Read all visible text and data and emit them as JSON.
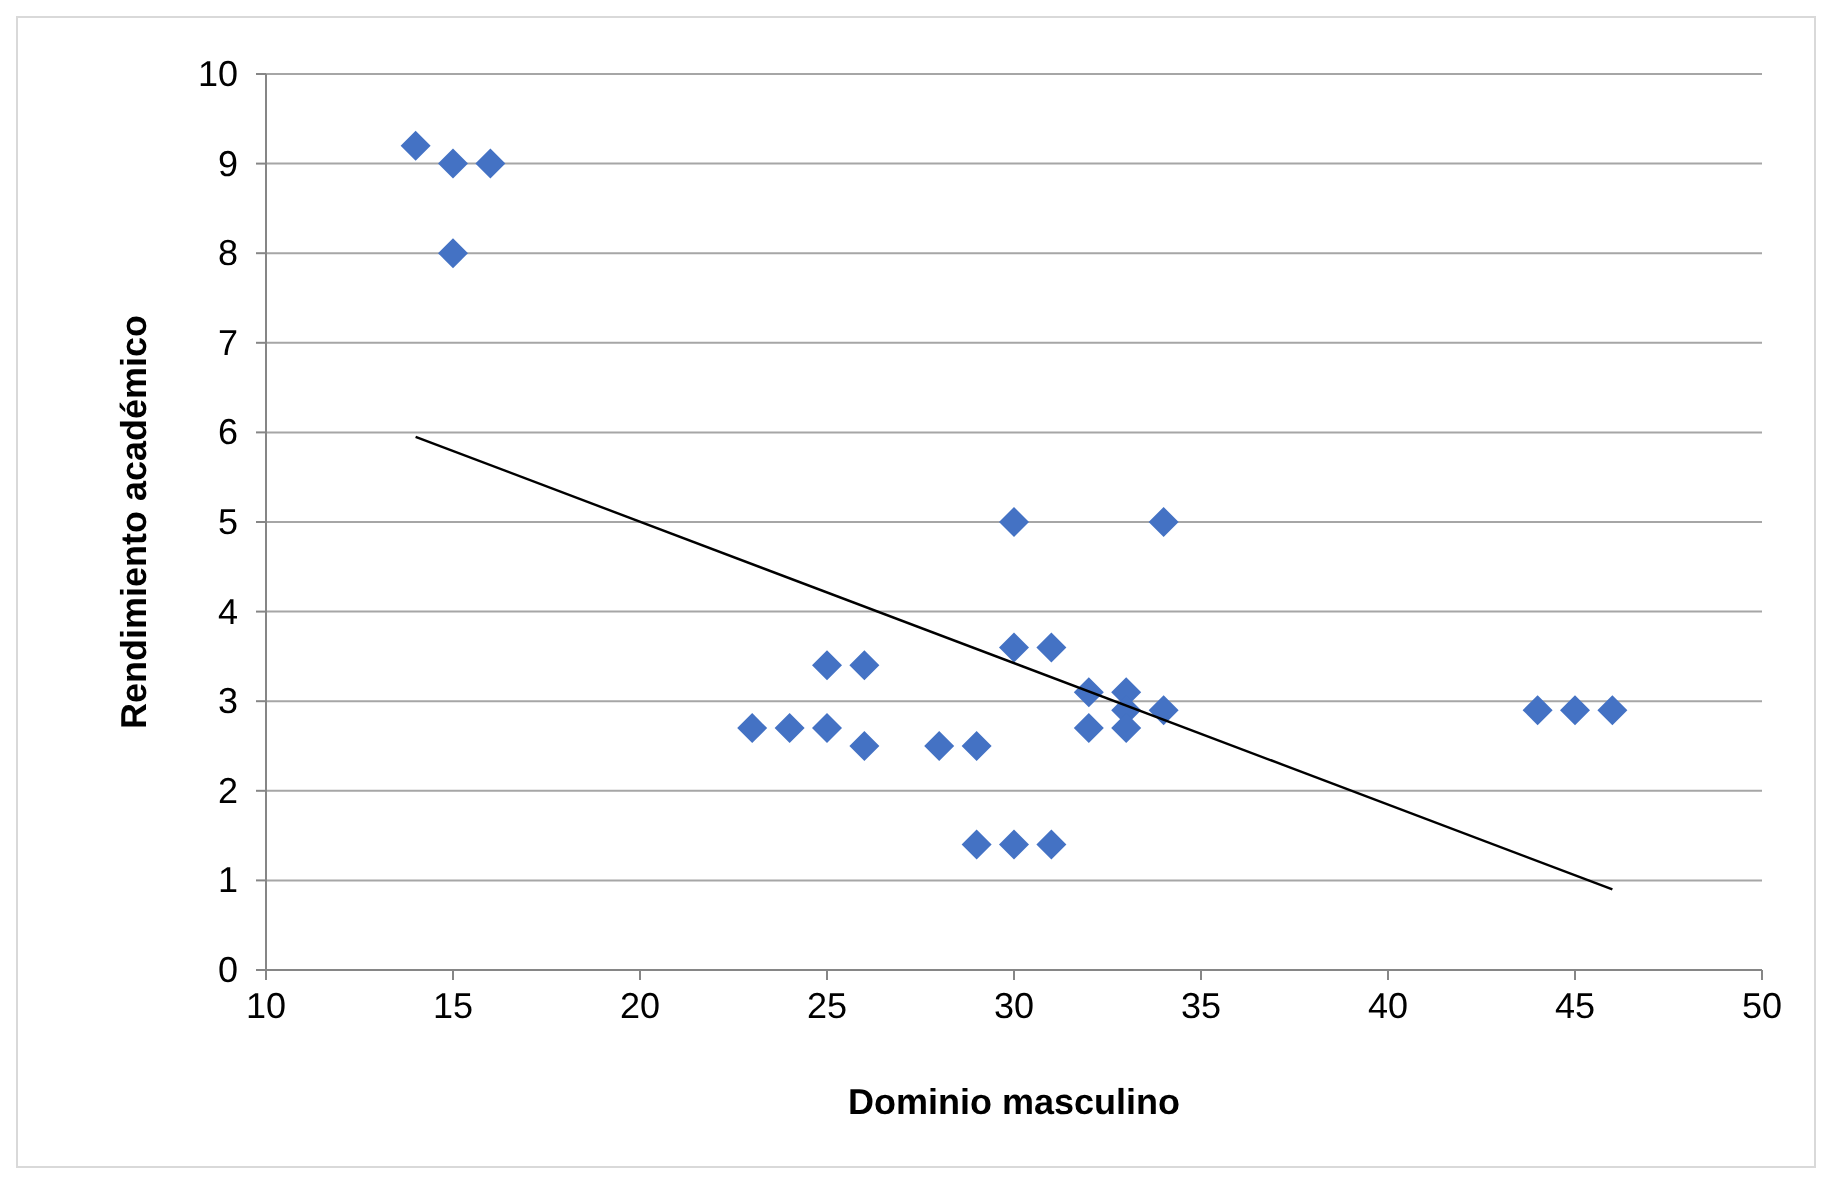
{
  "chart_data": {
    "type": "scatter",
    "xlabel": "Dominio masculino",
    "ylabel": "Rendimiento académico",
    "xlim": [
      10,
      50
    ],
    "xticks": [
      10,
      15,
      20,
      25,
      30,
      35,
      40,
      45,
      50
    ],
    "ylim": [
      0,
      10
    ],
    "yticks": [
      0,
      1,
      2,
      3,
      4,
      5,
      6,
      7,
      8,
      9,
      10
    ],
    "grid": "y",
    "series": [
      {
        "color": "#4472c4",
        "marker": "diamond",
        "x": [
          14,
          15,
          16,
          15,
          23,
          24,
          25,
          25,
          26,
          26,
          28,
          29,
          29,
          30,
          31,
          30,
          30,
          31,
          32,
          32,
          33,
          33,
          33,
          34,
          34,
          44,
          45,
          46
        ],
        "values": [
          9.2,
          9,
          9,
          8,
          2.7,
          2.7,
          2.7,
          3.4,
          3.4,
          2.5,
          2.5,
          2.5,
          1.4,
          1.4,
          1.4,
          5,
          3.6,
          3.6,
          3.1,
          2.7,
          3.1,
          2.9,
          2.7,
          2.9,
          5,
          2.9,
          2.9,
          2.9
        ]
      },
      {
        "type": "line",
        "color": "#000000",
        "marker": "none",
        "line_style": "solid",
        "x": [
          14,
          46
        ],
        "values": [
          5.95,
          0.9
        ]
      }
    ]
  }
}
